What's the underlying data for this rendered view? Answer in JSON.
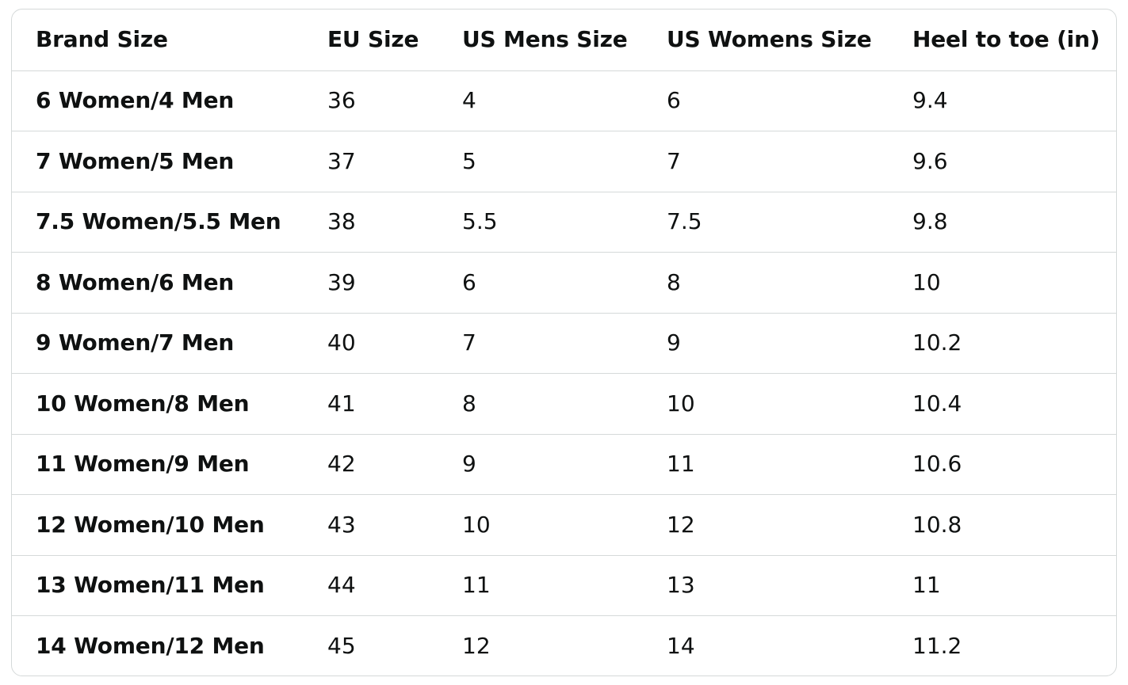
{
  "size_chart": {
    "headers": [
      "Brand Size",
      "EU Size",
      "US Mens Size",
      "US Womens Size",
      "Heel to toe (in)"
    ],
    "rows": [
      [
        "6 Women/4 Men",
        "36",
        "4",
        "6",
        "9.4"
      ],
      [
        "7 Women/5 Men",
        "37",
        "5",
        "7",
        "9.6"
      ],
      [
        "7.5 Women/5.5 Men",
        "38",
        "5.5",
        "7.5",
        "9.8"
      ],
      [
        "8 Women/6 Men",
        "39",
        "6",
        "8",
        "10"
      ],
      [
        "9 Women/7 Men",
        "40",
        "7",
        "9",
        "10.2"
      ],
      [
        "10 Women/8 Men",
        "41",
        "8",
        "10",
        "10.4"
      ],
      [
        "11 Women/9 Men",
        "42",
        "9",
        "11",
        "10.6"
      ],
      [
        "12 Women/10 Men",
        "43",
        "10",
        "12",
        "10.8"
      ],
      [
        "13 Women/11 Men",
        "44",
        "11",
        "13",
        "11"
      ],
      [
        "14 Women/12 Men",
        "45",
        "12",
        "14",
        "11.2"
      ]
    ]
  }
}
